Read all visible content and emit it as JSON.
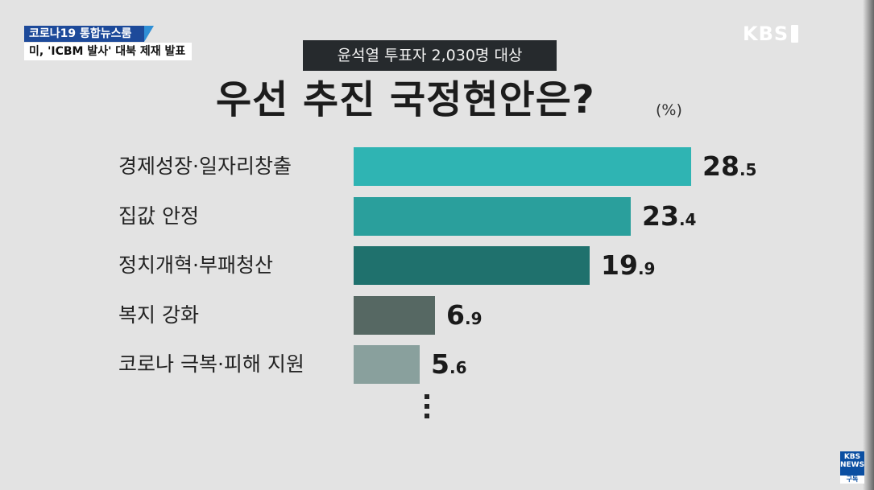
{
  "broadcast": {
    "ticker_top": "코로나19 통합뉴스룸",
    "ticker_bottom": "미, 'ICBM 발사' 대북 제재 발표",
    "logo_text": "KBS",
    "subscribe_logo": "KBS NEWS",
    "subscribe_label": "구독"
  },
  "colors": {
    "background": "#e3e3e3",
    "bar_1": "#2fb4b3",
    "bar_2": "#2a9f9c",
    "bar_3": "#1f716d",
    "bar_4": "#566863",
    "bar_5": "#89a09d"
  },
  "chart_data": {
    "type": "bar",
    "orientation": "horizontal",
    "subtitle": "윤석열 투표자 2,030명 대상",
    "title": "우선 추진 국정현안은?",
    "unit": "(%)",
    "categories": [
      "경제성장·일자리창출",
      "집값 안정",
      "정치개혁·부패청산",
      "복지 강화",
      "코로나 극복·피해 지원"
    ],
    "values": [
      28.5,
      23.4,
      19.9,
      6.9,
      5.6
    ],
    "value_labels": [
      {
        "int": "28",
        "dec": ".5"
      },
      {
        "int": "23",
        "dec": ".4"
      },
      {
        "int": "19",
        "dec": ".9"
      },
      {
        "int": "6",
        "dec": ".9"
      },
      {
        "int": "5",
        "dec": ".6"
      }
    ],
    "more_indicator": "⋮",
    "xlim": [
      0,
      28.5
    ]
  }
}
